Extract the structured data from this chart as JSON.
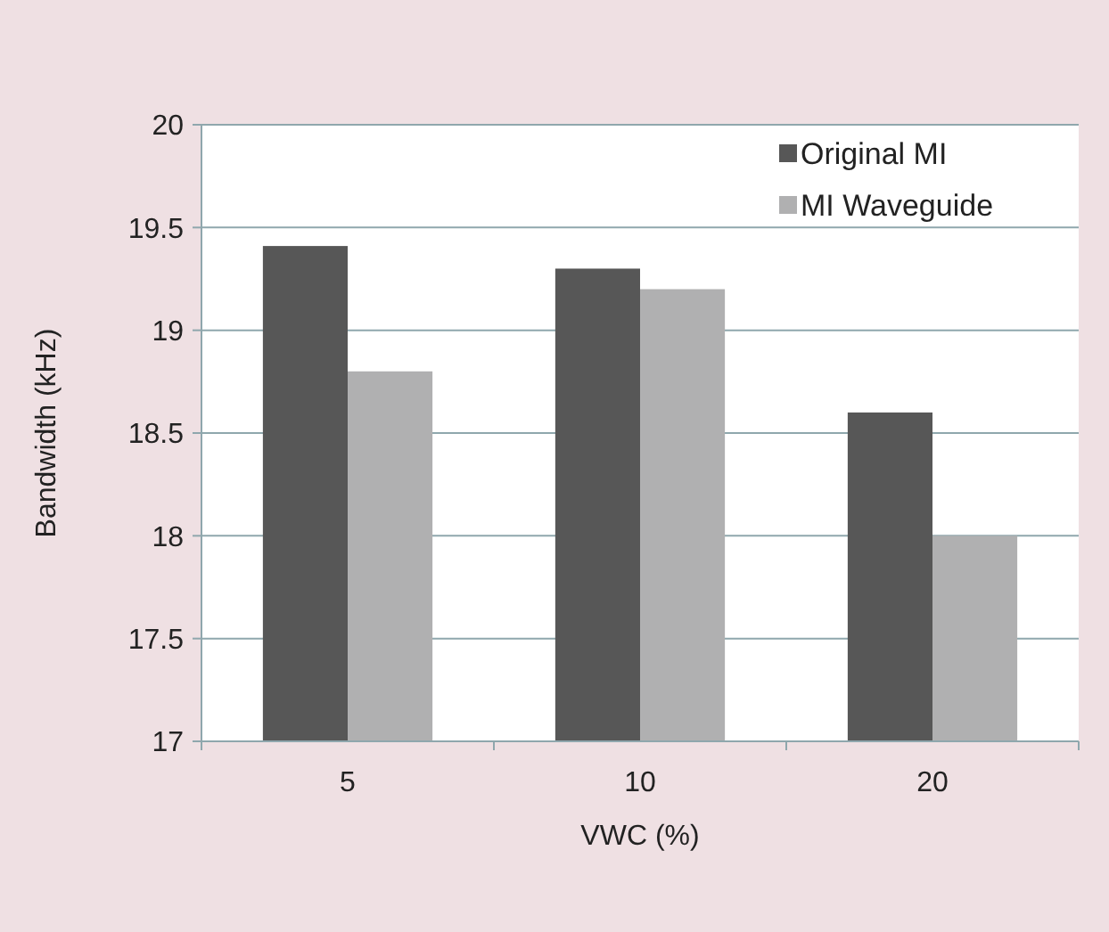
{
  "chart_data": {
    "type": "bar",
    "xlabel": "VWC (%)",
    "ylabel": "Bandwidth (kHz)",
    "categories": [
      "5",
      "10",
      "20"
    ],
    "series": [
      {
        "name": "Original MI",
        "color": "#575757",
        "values": [
          19.41,
          19.3,
          18.6
        ]
      },
      {
        "name": "MI Waveguide",
        "color": "#b0b0b1",
        "values": [
          18.8,
          19.2,
          18.0
        ]
      }
    ],
    "ylim": [
      17,
      20
    ],
    "yticks": [
      17,
      17.5,
      18,
      18.5,
      19,
      19.5,
      20
    ],
    "grid": "y",
    "legend": "top right"
  }
}
